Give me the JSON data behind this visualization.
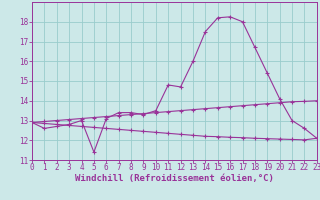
{
  "title": "",
  "xlabel": "Windchill (Refroidissement éolien,°C)",
  "ylabel": "",
  "background_color": "#cce8e8",
  "grid_color": "#99cccc",
  "line_color": "#993399",
  "xmin": 0,
  "xmax": 23,
  "ymin": 11,
  "ymax": 19,
  "yticks": [
    11,
    12,
    13,
    14,
    15,
    16,
    17,
    18
  ],
  "xticks": [
    0,
    1,
    2,
    3,
    4,
    5,
    6,
    7,
    8,
    9,
    10,
    11,
    12,
    13,
    14,
    15,
    16,
    17,
    18,
    19,
    20,
    21,
    22,
    23
  ],
  "series1_x": [
    0,
    1,
    2,
    3,
    4,
    5,
    6,
    7,
    8,
    9,
    10,
    11,
    12,
    13,
    14,
    15,
    16,
    17,
    18,
    19,
    20,
    21,
    22,
    23
  ],
  "series1_y": [
    12.9,
    12.6,
    12.7,
    12.8,
    13.0,
    11.4,
    13.1,
    13.4,
    13.4,
    13.3,
    13.5,
    14.8,
    14.7,
    16.0,
    17.5,
    18.2,
    18.25,
    18.0,
    16.7,
    15.4,
    14.1,
    13.0,
    12.6,
    12.1
  ],
  "series2_x": [
    0,
    1,
    2,
    3,
    4,
    5,
    6,
    7,
    8,
    9,
    10,
    11,
    12,
    13,
    14,
    15,
    16,
    17,
    18,
    19,
    20,
    21,
    22,
    23
  ],
  "series2_y": [
    12.9,
    12.85,
    12.8,
    12.75,
    12.7,
    12.65,
    12.6,
    12.55,
    12.5,
    12.45,
    12.4,
    12.35,
    12.3,
    12.25,
    12.2,
    12.18,
    12.15,
    12.13,
    12.1,
    12.08,
    12.06,
    12.04,
    12.02,
    12.1
  ],
  "series3_x": [
    0,
    1,
    2,
    3,
    4,
    5,
    6,
    7,
    8,
    9,
    10,
    11,
    12,
    13,
    14,
    15,
    16,
    17,
    18,
    19,
    20,
    21,
    22,
    23
  ],
  "series3_y": [
    12.9,
    12.95,
    13.0,
    13.05,
    13.1,
    13.15,
    13.2,
    13.25,
    13.3,
    13.35,
    13.4,
    13.45,
    13.5,
    13.55,
    13.6,
    13.65,
    13.7,
    13.75,
    13.8,
    13.85,
    13.9,
    13.95,
    13.97,
    14.0
  ],
  "font_color": "#993399",
  "tick_fontsize": 5.5,
  "label_fontsize": 6.5
}
